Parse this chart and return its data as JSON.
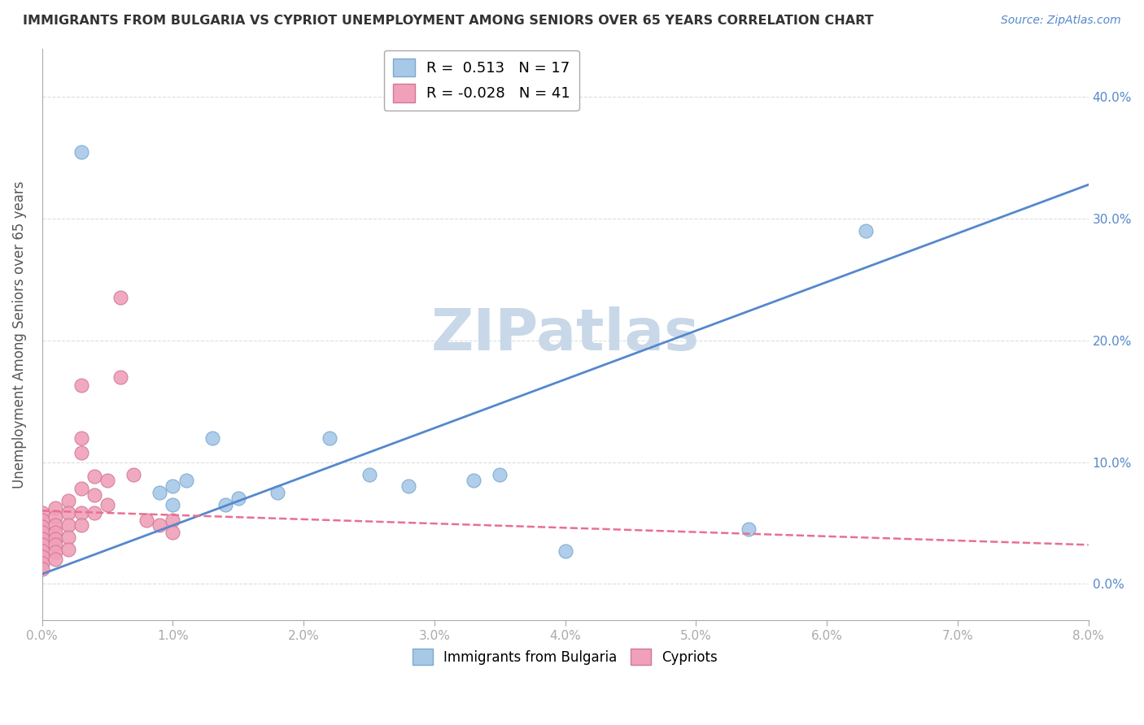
{
  "title": "IMMIGRANTS FROM BULGARIA VS CYPRIOT UNEMPLOYMENT AMONG SENIORS OVER 65 YEARS CORRELATION CHART",
  "source": "Source: ZipAtlas.com",
  "ylabel": "Unemployment Among Seniors over 65 years",
  "xlim": [
    0.0,
    0.08
  ],
  "ylim": [
    -0.03,
    0.44
  ],
  "legend_entries": [
    {
      "label": "R =  0.513   N = 17"
    },
    {
      "label": "R = -0.028   N = 41"
    }
  ],
  "watermark": "ZIPatlas",
  "watermark_color": "#c8d8e8",
  "bg_color": "#ffffff",
  "grid_color": "#dddddd",
  "blue_series": {
    "color": "#a8c8e8",
    "edge_color": "#7aaad0",
    "points": [
      [
        0.003,
        0.355
      ],
      [
        0.009,
        0.075
      ],
      [
        0.01,
        0.08
      ],
      [
        0.01,
        0.065
      ],
      [
        0.011,
        0.085
      ],
      [
        0.013,
        0.12
      ],
      [
        0.014,
        0.065
      ],
      [
        0.015,
        0.07
      ],
      [
        0.018,
        0.075
      ],
      [
        0.022,
        0.12
      ],
      [
        0.025,
        0.09
      ],
      [
        0.028,
        0.08
      ],
      [
        0.033,
        0.085
      ],
      [
        0.035,
        0.09
      ],
      [
        0.04,
        0.027
      ],
      [
        0.054,
        0.045
      ],
      [
        0.063,
        0.29
      ]
    ],
    "trend_color": "#5588cc",
    "trend_slope": 4.0,
    "trend_intercept": 0.008,
    "trend_style": "solid",
    "trend_lw": 2.0
  },
  "pink_series": {
    "color": "#f0a0b8",
    "edge_color": "#d07898",
    "points": [
      [
        0.0,
        0.058
      ],
      [
        0.0,
        0.052
      ],
      [
        0.0,
        0.047
      ],
      [
        0.0,
        0.042
      ],
      [
        0.0,
        0.037
      ],
      [
        0.0,
        0.032
      ],
      [
        0.0,
        0.027
      ],
      [
        0.0,
        0.022
      ],
      [
        0.0,
        0.017
      ],
      [
        0.0,
        0.012
      ],
      [
        0.001,
        0.062
      ],
      [
        0.001,
        0.055
      ],
      [
        0.001,
        0.048
      ],
      [
        0.001,
        0.042
      ],
      [
        0.001,
        0.037
      ],
      [
        0.001,
        0.032
      ],
      [
        0.001,
        0.026
      ],
      [
        0.001,
        0.02
      ],
      [
        0.002,
        0.068
      ],
      [
        0.002,
        0.058
      ],
      [
        0.002,
        0.048
      ],
      [
        0.002,
        0.038
      ],
      [
        0.002,
        0.028
      ],
      [
        0.003,
        0.163
      ],
      [
        0.003,
        0.12
      ],
      [
        0.003,
        0.108
      ],
      [
        0.003,
        0.078
      ],
      [
        0.003,
        0.058
      ],
      [
        0.003,
        0.048
      ],
      [
        0.004,
        0.088
      ],
      [
        0.004,
        0.073
      ],
      [
        0.004,
        0.058
      ],
      [
        0.005,
        0.085
      ],
      [
        0.005,
        0.065
      ],
      [
        0.006,
        0.235
      ],
      [
        0.006,
        0.17
      ],
      [
        0.007,
        0.09
      ],
      [
        0.008,
        0.052
      ],
      [
        0.009,
        0.048
      ],
      [
        0.01,
        0.052
      ],
      [
        0.01,
        0.042
      ]
    ],
    "trend_color": "#e87090",
    "trend_slope": -0.35,
    "trend_intercept": 0.06,
    "trend_style": "dashed",
    "trend_lw": 1.8
  },
  "marker_size": 100
}
